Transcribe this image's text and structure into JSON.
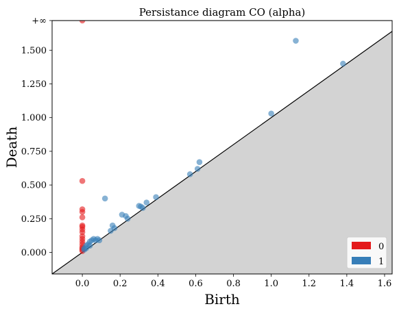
{
  "chart_data": {
    "type": "scatter",
    "title": "Persistance diagram CO (alpha)",
    "xlabel": "Birth",
    "ylabel": "Death",
    "xlim": [
      -0.16,
      1.64
    ],
    "ylim": [
      -0.16,
      1.72
    ],
    "infinity_level": 1.72,
    "infinity_label": "+∞",
    "xticks": [
      0.0,
      0.2,
      0.4,
      0.6,
      0.8,
      1.0,
      1.2,
      1.4,
      1.6
    ],
    "xtick_labels": [
      "0.0",
      "0.2",
      "0.4",
      "0.6",
      "0.8",
      "1.0",
      "1.2",
      "1.4",
      "1.6"
    ],
    "yticks": [
      0.0,
      0.25,
      0.5,
      0.75,
      1.0,
      1.25,
      1.5
    ],
    "ytick_labels": [
      "0.000",
      "0.250",
      "0.500",
      "0.750",
      "1.000",
      "1.250",
      "1.500"
    ],
    "grid": false,
    "legend_position": "bottom-right",
    "diagonal": true,
    "shade_below_diagonal": true,
    "colors": {
      "dim0": "#e41a1c",
      "dim1": "#377eb8",
      "diagonal_fill": "#d3d3d3",
      "infinity_line": "#808080"
    },
    "series": [
      {
        "name": "0",
        "color": "#e41a1c",
        "points": [
          [
            0.0,
            1.72
          ],
          [
            0.0,
            0.53
          ],
          [
            0.0,
            0.32
          ],
          [
            0.0,
            0.3
          ],
          [
            0.0,
            0.26
          ],
          [
            0.0,
            0.2
          ],
          [
            0.0,
            0.19
          ],
          [
            0.0,
            0.17
          ],
          [
            0.0,
            0.15
          ],
          [
            0.0,
            0.12
          ],
          [
            0.0,
            0.1
          ],
          [
            0.0,
            0.08
          ],
          [
            0.0,
            0.06
          ],
          [
            0.0,
            0.04
          ],
          [
            0.0,
            0.03
          ],
          [
            0.0,
            0.02
          ],
          [
            0.0,
            0.01
          ]
        ]
      },
      {
        "name": "1",
        "color": "#377eb8",
        "points": [
          [
            1.13,
            1.57
          ],
          [
            1.38,
            1.4
          ],
          [
            1.0,
            1.03
          ],
          [
            0.62,
            0.67
          ],
          [
            0.61,
            0.62
          ],
          [
            0.57,
            0.58
          ],
          [
            0.39,
            0.41
          ],
          [
            0.34,
            0.37
          ],
          [
            0.31,
            0.34
          ],
          [
            0.3,
            0.345
          ],
          [
            0.32,
            0.33
          ],
          [
            0.12,
            0.4
          ],
          [
            0.21,
            0.28
          ],
          [
            0.23,
            0.27
          ],
          [
            0.24,
            0.25
          ],
          [
            0.16,
            0.2
          ],
          [
            0.17,
            0.18
          ],
          [
            0.15,
            0.16
          ],
          [
            0.09,
            0.09
          ],
          [
            0.08,
            0.1
          ],
          [
            0.06,
            0.1
          ],
          [
            0.05,
            0.09
          ],
          [
            0.04,
            0.08
          ],
          [
            0.07,
            0.09
          ],
          [
            0.03,
            0.06
          ],
          [
            0.02,
            0.05
          ],
          [
            0.04,
            0.05
          ],
          [
            0.01,
            0.03
          ],
          [
            0.02,
            0.03
          ],
          [
            0.01,
            0.02
          ]
        ]
      }
    ]
  }
}
